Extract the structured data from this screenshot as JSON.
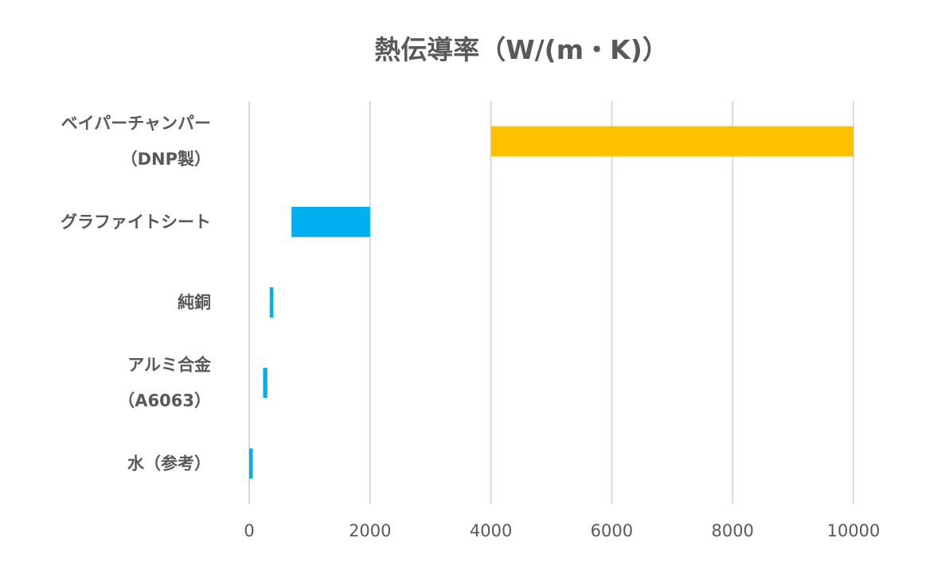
{
  "chart_data": {
    "type": "bar",
    "orientation": "horizontal",
    "title": "熱伝導率（W/(m・K)）",
    "xlabel": "",
    "ylabel": "",
    "categories": [
      [
        "ベイパーチャンパー",
        "（DNP製）"
      ],
      [
        "グラファイトシート"
      ],
      [
        "純銅"
      ],
      [
        "アルミ合金",
        "（A6063）"
      ],
      [
        "水（参考）"
      ]
    ],
    "ranges": [
      [
        4000,
        10000
      ],
      [
        700,
        2000
      ],
      [
        340,
        400
      ],
      [
        230,
        300
      ],
      [
        0,
        60
      ]
    ],
    "colors": [
      "#FFC000",
      "#00B0F0",
      "#00B0F0",
      "#00B0F0",
      "#00B0F0"
    ],
    "xlim": [
      0,
      10000
    ],
    "xticks": [
      "0",
      "2000",
      "4000",
      "6000",
      "8000",
      "10000"
    ],
    "grid": true,
    "legend": "none",
    "gridline_color": "#d9d9d9",
    "text_color": "#595959"
  }
}
